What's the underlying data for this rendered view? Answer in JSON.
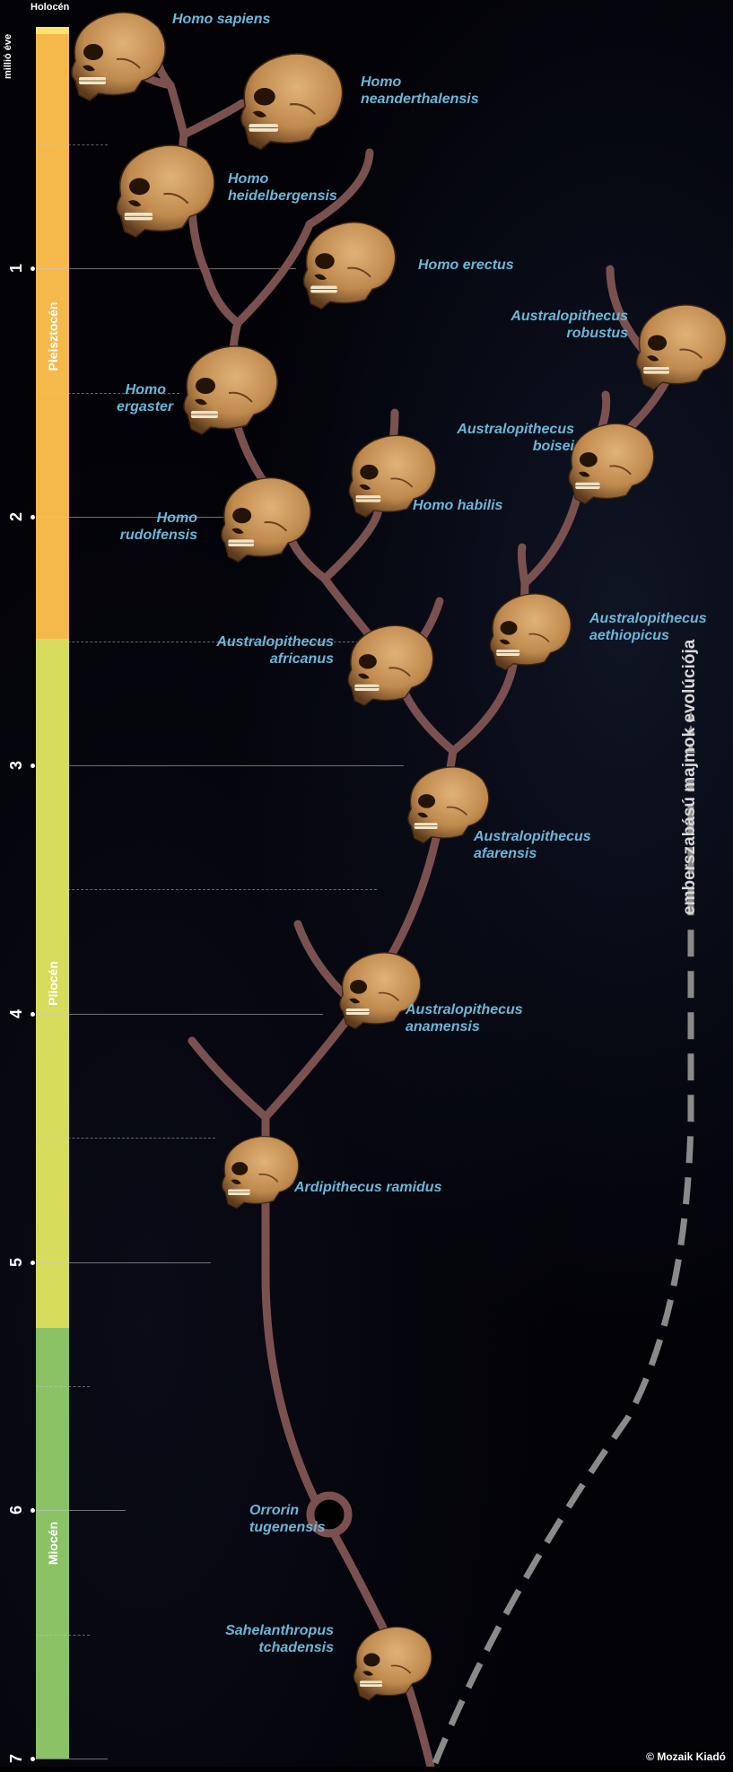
{
  "axis_title": "millió éve",
  "ticks": [
    "1",
    "2",
    "3",
    "4",
    "5",
    "6",
    "7"
  ],
  "eras": [
    {
      "name": "Holocén",
      "color": "#fde272"
    },
    {
      "name": "Pleisztocén",
      "color": "#f4b94a"
    },
    {
      "name": "Pliocén",
      "color": "#d7dc5c"
    },
    {
      "name": "Miocén",
      "color": "#8cc266"
    }
  ],
  "species": [
    "Homo sapiens",
    [
      "Homo",
      "neanderthalensis"
    ],
    [
      "Homo",
      "heidelbergensis"
    ],
    "Homo erectus",
    [
      "Homo",
      "ergaster"
    ],
    [
      "Homo",
      "rudolfensis"
    ],
    "Homo habilis",
    [
      "Australopithecus",
      "robustus"
    ],
    [
      "Australopithecus",
      "boisei"
    ],
    [
      "Australopithecus",
      "aethiopicus"
    ],
    [
      "Australopithecus",
      "africanus"
    ],
    [
      "Australopithecus",
      "afarensis"
    ],
    [
      "Australopithecus",
      "anamensis"
    ],
    "Ardipithecus ramidus",
    [
      "Orrorin",
      "tugenensis"
    ],
    [
      "Sahelanthropus",
      "tchadensis"
    ]
  ],
  "side_label": "emberszabású majmok evolúciója",
  "copyright": "© Mozaik Kiadó",
  "colors": {
    "branch": "#7b5150",
    "label": "#6eb6d8",
    "skull": "#c08a4e",
    "ape_line": "#8a8a8a"
  }
}
